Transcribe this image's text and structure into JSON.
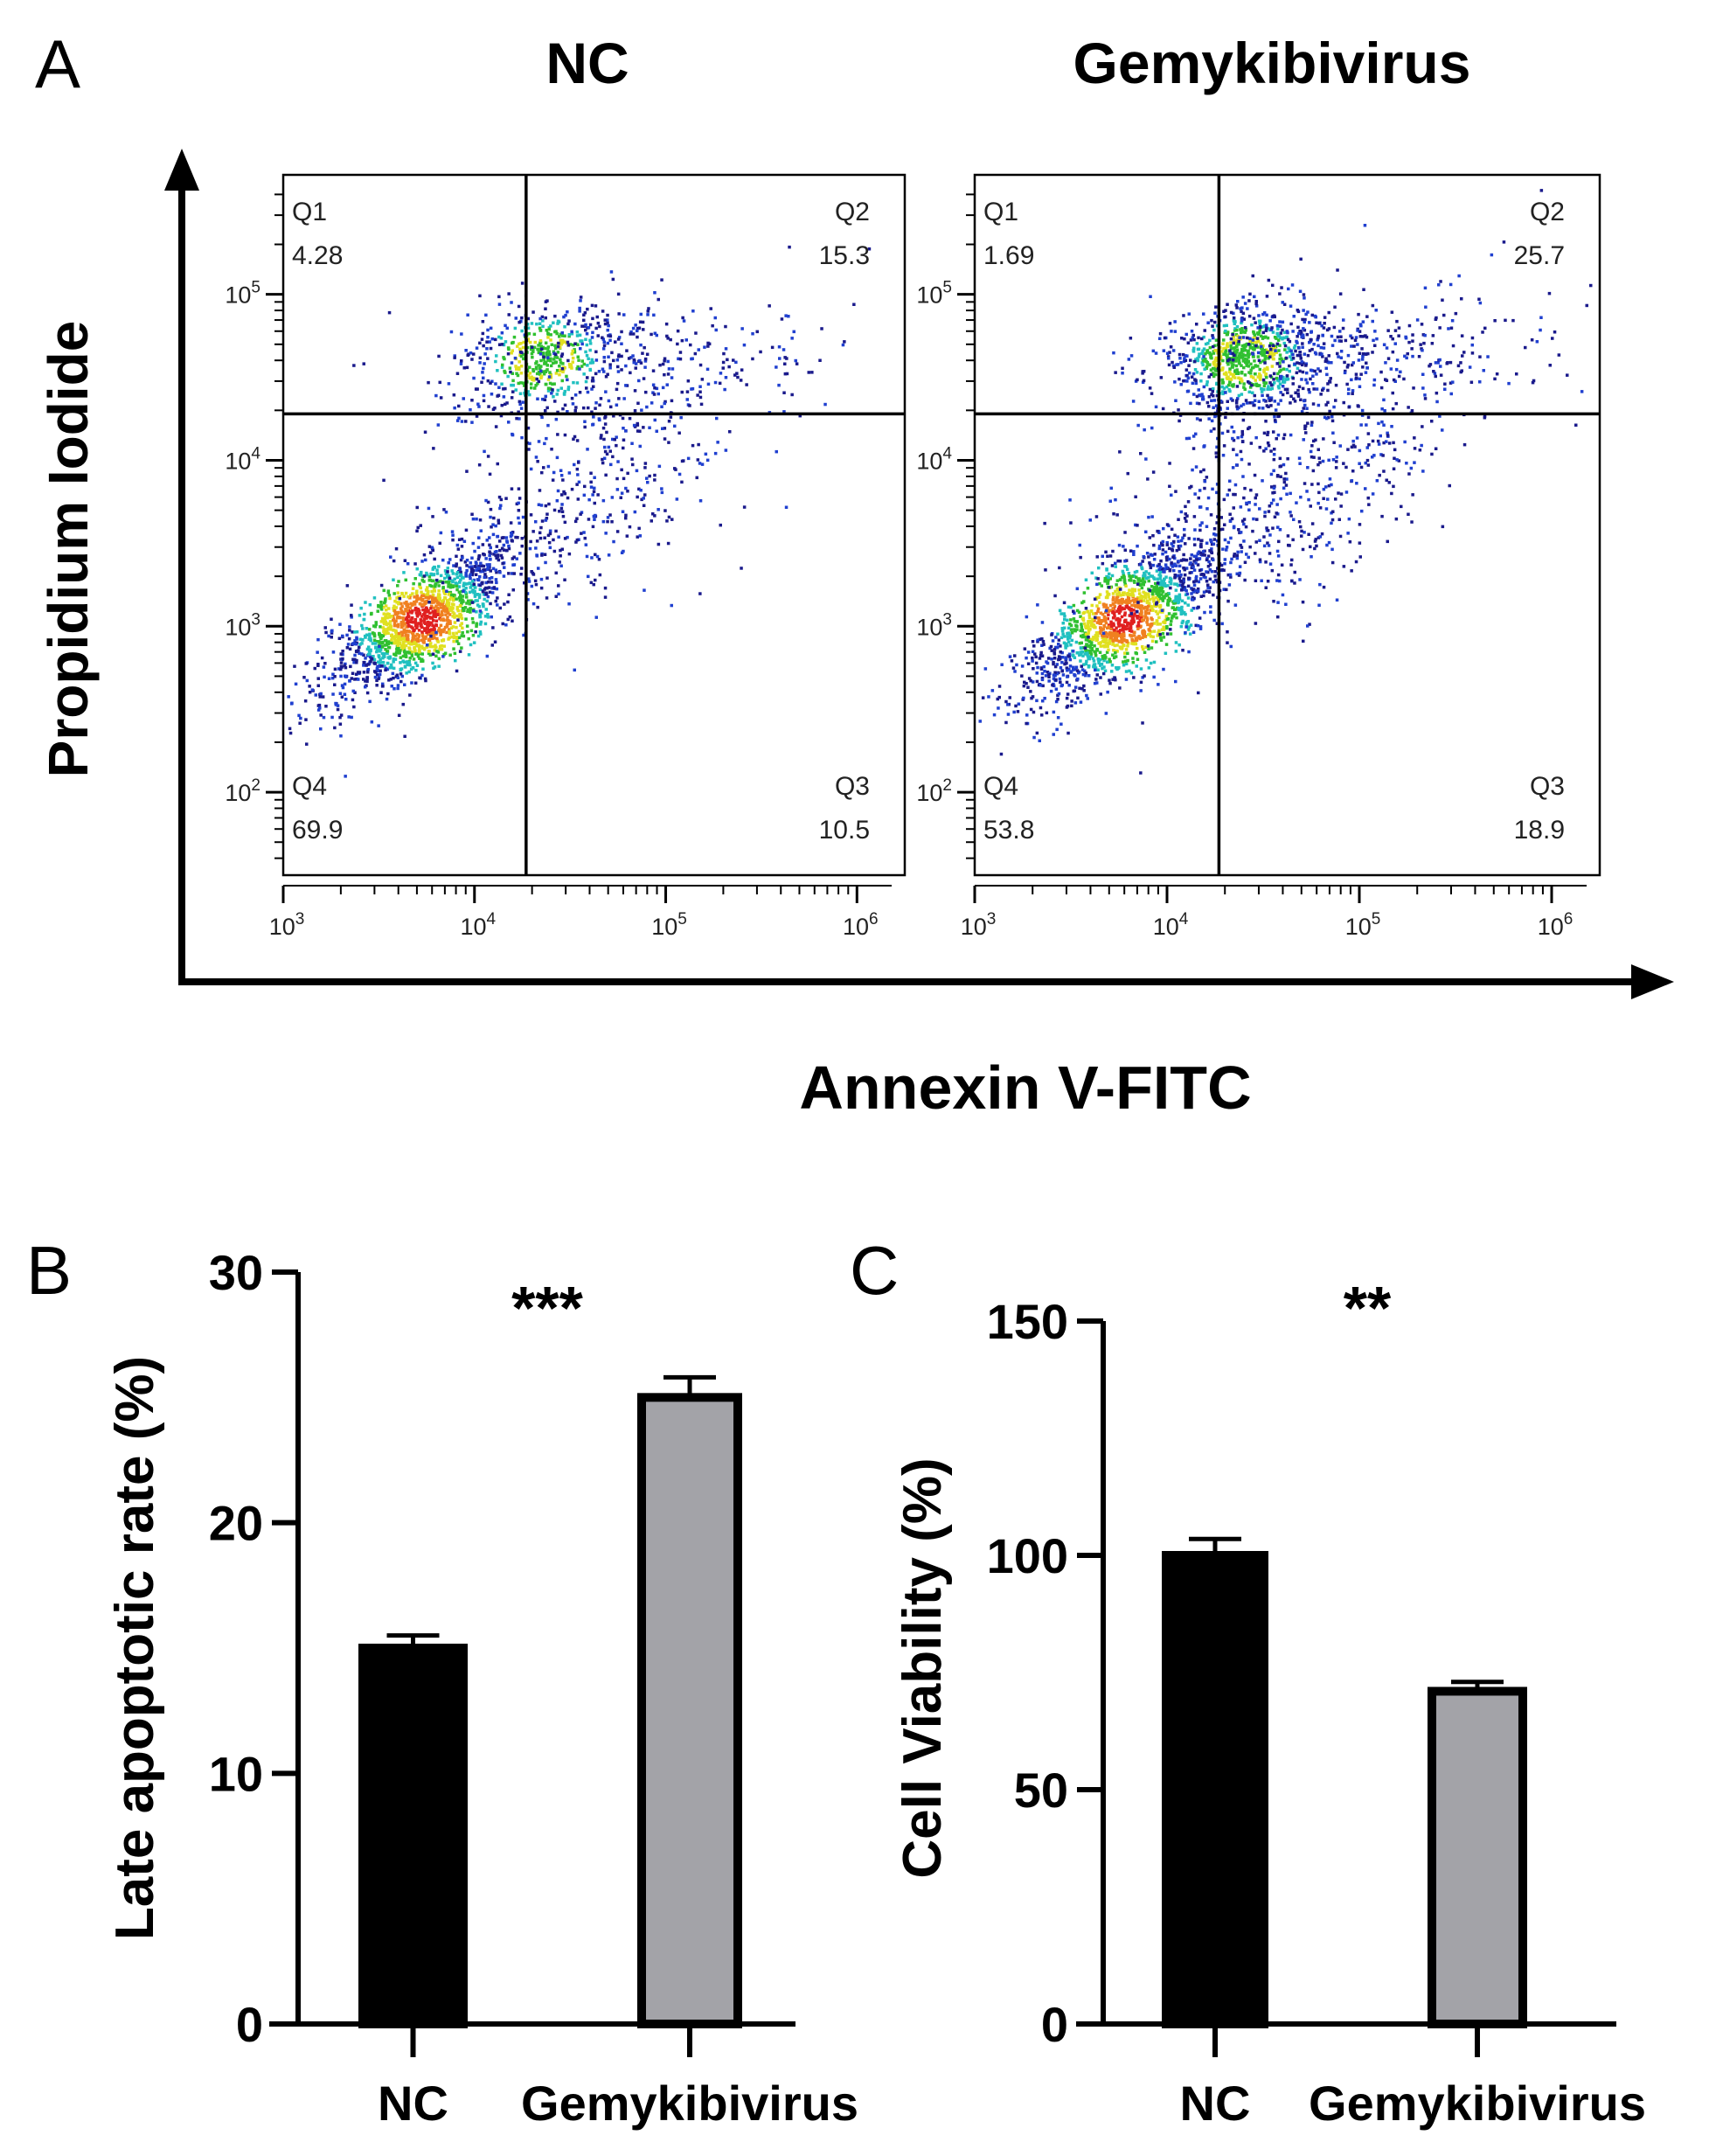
{
  "panel_labels": {
    "a": "A",
    "b": "B",
    "c": "C"
  },
  "panel_a": {
    "y_axis_label": "Propidium Iodide",
    "x_axis_label": "Annexin V-FITC",
    "x_ticks": [
      {
        "base": "10",
        "exp": "3",
        "value": 3
      },
      {
        "base": "10",
        "exp": "4",
        "value": 4
      },
      {
        "base": "10",
        "exp": "5",
        "value": 5
      },
      {
        "base": "10",
        "exp": "6",
        "value": 6
      }
    ],
    "y_ticks": [
      {
        "base": "10",
        "exp": "2",
        "value": 2
      },
      {
        "base": "10",
        "exp": "3",
        "value": 3
      },
      {
        "base": "10",
        "exp": "4",
        "value": 4
      },
      {
        "base": "10",
        "exp": "5",
        "value": 5
      }
    ],
    "plots": [
      {
        "title": "NC",
        "gate_x_log": 4.27,
        "gate_y_log": 4.28,
        "quadrants": {
          "Q1": "4.28",
          "Q2": "15.3",
          "Q3": "10.5",
          "Q4": "69.9"
        }
      },
      {
        "title": "Gemykibivirus",
        "gate_x_log": 4.27,
        "gate_y_log": 4.28,
        "quadrants": {
          "Q1": "1.69",
          "Q2": "25.7",
          "Q3": "18.9",
          "Q4": "53.8"
        }
      }
    ],
    "density_colors": [
      "#1a1a8c",
      "#2040d0",
      "#20c0c0",
      "#30c030",
      "#e0e020",
      "#f08020",
      "#e02020"
    ]
  },
  "chart_data": [
    {
      "type": "bar",
      "title": "",
      "categories": [
        "NC",
        "Gemykibivirus"
      ],
      "values": [
        15.0,
        25.0
      ],
      "error": [
        0.5,
        0.8
      ],
      "ylabel": "Late apoptotic rate (%)",
      "xlabel": "",
      "ylim": [
        0,
        30
      ],
      "yticks": [
        "0",
        "10",
        "20",
        "30"
      ],
      "significance": "***",
      "colors": [
        "#000000",
        "#a3a3a8"
      ]
    },
    {
      "type": "bar",
      "title": "",
      "categories": [
        "NC",
        "Gemykibivirus"
      ],
      "values": [
        100,
        71
      ],
      "error": [
        3.5,
        2.0
      ],
      "ylabel": "Cell Viability (%)",
      "xlabel": "",
      "ylim": [
        0,
        150
      ],
      "yticks": [
        "0",
        "50",
        "100",
        "150"
      ],
      "significance": "**",
      "colors": [
        "#000000",
        "#a3a3a8"
      ]
    }
  ]
}
